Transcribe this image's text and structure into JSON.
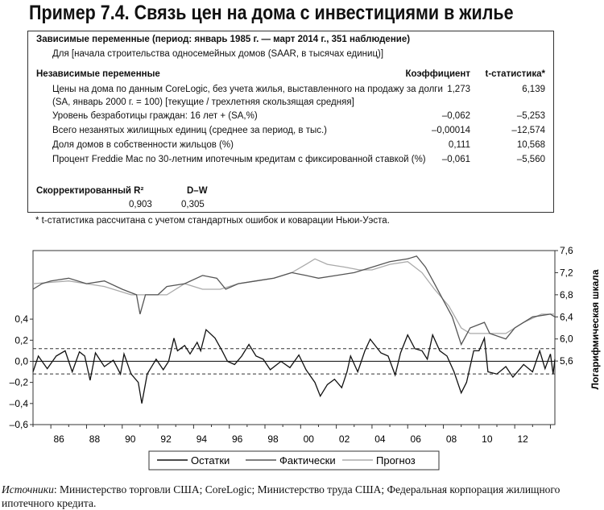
{
  "title": "Пример 7.4. Связь цен на дома с инвестициями в жилье",
  "table": {
    "dep_header": "Зависимые переменные (период: январь 1985 г. — март 2014 г., 351 наблюдение)",
    "dep_var": "Для [начала строительства односемейных домов (SAAR, в тысячах единиц)]",
    "indep_header": "Независимые переменные",
    "col_coef": "Коэффициент",
    "col_t": "t-статистика*",
    "rows": [
      {
        "label": "Цены на дома по данным CoreLogic, без учета жилья, выставленного на продажу за долги",
        "coef": "1,273",
        "t": "6,139"
      },
      {
        "label": "(SA, январь 2000 г. = 100) [текущие / трехлетняя скользящая средняя]",
        "coef": "",
        "t": ""
      },
      {
        "label": "Уровень безработицы граждан: 16 лет + (SA,%)",
        "coef": "–0,062",
        "t": "–5,253"
      },
      {
        "label": "Всего незанятых жилищных единиц (среднее за период, в тыс.)",
        "coef": "–0,00014",
        "t": "–12,574"
      },
      {
        "label": "Доля домов в собственности жильцов (%)",
        "coef": "0,111",
        "t": "10,568"
      },
      {
        "label": "Процент Freddie Mac по 30-летним ипотечным кредитам с фиксированной ставкой (%)",
        "coef": "–0,061",
        "t": "–5,560"
      }
    ],
    "r2_label": "Скорректированный R²",
    "r2_value": "0,903",
    "dw_label": "D–W",
    "dw_value": "0,305"
  },
  "footnote": "* t-статистика рассчитана с учетом стандартных ошибок и коварации Ньюи-Уэста.",
  "sources_label": "Источники",
  "sources_text": ": Министерство торговли США; CoreLogic; Министерство труда США; Федеральная корпорация жилищного ипотечного кредита.",
  "chart_data": {
    "type": "line",
    "x_ticks": [
      "86",
      "88",
      "90",
      "92",
      "94",
      "96",
      "98",
      "00",
      "02",
      "04",
      "06",
      "08",
      "10",
      "12"
    ],
    "xlim": [
      1985,
      2014.25
    ],
    "left_axis": {
      "ticks": [
        "0,4",
        "0,2",
        "0,0",
        "–0,2",
        "–0,4",
        "–0,6"
      ],
      "tick_values": [
        0.4,
        0.2,
        0,
        -0.2,
        -0.4,
        -0.6
      ],
      "ylim": [
        -0.6,
        1.05
      ]
    },
    "right_axis": {
      "label": "Логарифмическая шкала",
      "ticks": [
        "7,6",
        "7,2",
        "6,8",
        "6,4",
        "6,0",
        "5,6"
      ],
      "tick_values": [
        7.6,
        7.2,
        6.8,
        6.4,
        6.0,
        5.6
      ],
      "ylim": [
        4.45,
        7.6
      ]
    },
    "reference_lines": {
      "zero": 0,
      "dashed": [
        0.12,
        -0.12
      ]
    },
    "legend_placement": "bottom",
    "series": [
      {
        "name": "Остатки",
        "axis": "left",
        "color": "#111111",
        "points": [
          [
            1985,
            -0.1
          ],
          [
            1985.3,
            0.05
          ],
          [
            1985.8,
            -0.07
          ],
          [
            1986.3,
            0.05
          ],
          [
            1986.8,
            0.1
          ],
          [
            1987.2,
            -0.1
          ],
          [
            1987.6,
            0.09
          ],
          [
            1987.9,
            0.05
          ],
          [
            1988.2,
            -0.18
          ],
          [
            1988.5,
            0.08
          ],
          [
            1989,
            -0.05
          ],
          [
            1989.5,
            0.01
          ],
          [
            1989.9,
            -0.12
          ],
          [
            1990.1,
            0.07
          ],
          [
            1990.5,
            -0.12
          ],
          [
            1990.9,
            -0.2
          ],
          [
            1991.1,
            -0.4
          ],
          [
            1991.4,
            -0.12
          ],
          [
            1991.9,
            0.02
          ],
          [
            1992.3,
            -0.08
          ],
          [
            1992.6,
            0
          ],
          [
            1992.9,
            0.22
          ],
          [
            1993.1,
            0.1
          ],
          [
            1993.5,
            0.15
          ],
          [
            1993.8,
            0.07
          ],
          [
            1994.2,
            0.18
          ],
          [
            1994.4,
            0.1
          ],
          [
            1994.7,
            0.3
          ],
          [
            1995.2,
            0.22
          ],
          [
            1995.6,
            0.1
          ],
          [
            1995.9,
            0
          ],
          [
            1996.3,
            -0.03
          ],
          [
            1996.7,
            0.05
          ],
          [
            1997.1,
            0.16
          ],
          [
            1997.5,
            0.05
          ],
          [
            1997.9,
            0.02
          ],
          [
            1998.3,
            -0.08
          ],
          [
            1998.9,
            0
          ],
          [
            1999.4,
            -0.06
          ],
          [
            1999.9,
            0.06
          ],
          [
            2000.3,
            -0.08
          ],
          [
            2000.8,
            -0.2
          ],
          [
            2001.1,
            -0.33
          ],
          [
            2001.5,
            -0.22
          ],
          [
            2001.9,
            -0.17
          ],
          [
            2002.3,
            -0.25
          ],
          [
            2002.6,
            -0.1
          ],
          [
            2002.8,
            0.05
          ],
          [
            2003.2,
            -0.1
          ],
          [
            2003.6,
            0.1
          ],
          [
            2003.9,
            0.21
          ],
          [
            2004.5,
            0.08
          ],
          [
            2004.9,
            0.05
          ],
          [
            2005.3,
            -0.13
          ],
          [
            2005.6,
            0.08
          ],
          [
            2006.0,
            0.25
          ],
          [
            2006.4,
            0.12
          ],
          [
            2006.8,
            0.1
          ],
          [
            2007.1,
            0.02
          ],
          [
            2007.4,
            0.25
          ],
          [
            2007.8,
            0.1
          ],
          [
            2008.2,
            0.05
          ],
          [
            2008.6,
            -0.1
          ],
          [
            2009.0,
            -0.3
          ],
          [
            2009.3,
            -0.2
          ],
          [
            2009.7,
            0.1
          ],
          [
            2010.0,
            0.1
          ],
          [
            2010.3,
            0.22
          ],
          [
            2010.5,
            -0.1
          ],
          [
            2011.0,
            -0.12
          ],
          [
            2011.5,
            -0.05
          ],
          [
            2011.9,
            -0.15
          ],
          [
            2012.5,
            -0.03
          ],
          [
            2013.0,
            -0.1
          ],
          [
            2013.4,
            0.1
          ],
          [
            2013.7,
            -0.07
          ],
          [
            2014.0,
            0.07
          ],
          [
            2014.15,
            -0.12
          ],
          [
            2014.25,
            0.02
          ]
        ]
      },
      {
        "name": "Фактически",
        "axis": "right",
        "color": "#555555",
        "points": [
          [
            1985,
            6.9
          ],
          [
            1985.5,
            7.0
          ],
          [
            1986,
            7.05
          ],
          [
            1987,
            7.1
          ],
          [
            1988,
            7.0
          ],
          [
            1989,
            7.05
          ],
          [
            1990,
            6.9
          ],
          [
            1990.8,
            6.8
          ],
          [
            1991.0,
            6.45
          ],
          [
            1991.3,
            6.8
          ],
          [
            1992,
            6.8
          ],
          [
            1992.5,
            6.95
          ],
          [
            1993.5,
            7.0
          ],
          [
            1994.5,
            7.15
          ],
          [
            1995.3,
            7.1
          ],
          [
            1995.8,
            6.9
          ],
          [
            1996.5,
            7.0
          ],
          [
            1997.5,
            7.05
          ],
          [
            1998.5,
            7.1
          ],
          [
            1999.5,
            7.2
          ],
          [
            2000.3,
            7.15
          ],
          [
            2001,
            7.1
          ],
          [
            2002,
            7.15
          ],
          [
            2003,
            7.2
          ],
          [
            2004,
            7.3
          ],
          [
            2005,
            7.4
          ],
          [
            2006,
            7.45
          ],
          [
            2006.5,
            7.5
          ],
          [
            2007,
            7.3
          ],
          [
            2007.5,
            7.0
          ],
          [
            2008,
            6.7
          ],
          [
            2008.5,
            6.4
          ],
          [
            2009.0,
            5.9
          ],
          [
            2009.5,
            6.2
          ],
          [
            2010.3,
            6.3
          ],
          [
            2010.6,
            6.1
          ],
          [
            2011.5,
            6.0
          ],
          [
            2012,
            6.2
          ],
          [
            2013,
            6.4
          ],
          [
            2014,
            6.45
          ],
          [
            2014.25,
            6.4
          ]
        ]
      },
      {
        "name": "Прогноз",
        "axis": "right",
        "color": "#aaaaaa",
        "points": [
          [
            1985,
            7.0
          ],
          [
            1987,
            7.05
          ],
          [
            1989,
            6.95
          ],
          [
            1990.5,
            6.8
          ],
          [
            1991.5,
            6.8
          ],
          [
            1992.5,
            6.8
          ],
          [
            1993.5,
            7.0
          ],
          [
            1994.5,
            6.9
          ],
          [
            1995.5,
            6.9
          ],
          [
            1996.5,
            7.0
          ],
          [
            1997.5,
            7.05
          ],
          [
            1998.5,
            7.1
          ],
          [
            1999.5,
            7.2
          ],
          [
            2000.3,
            7.35
          ],
          [
            2000.8,
            7.45
          ],
          [
            2001.5,
            7.35
          ],
          [
            2002.5,
            7.3
          ],
          [
            2003.3,
            7.25
          ],
          [
            2004,
            7.25
          ],
          [
            2005,
            7.35
          ],
          [
            2006,
            7.4
          ],
          [
            2006.8,
            7.2
          ],
          [
            2007.5,
            6.9
          ],
          [
            2008.3,
            6.6
          ],
          [
            2009,
            6.2
          ],
          [
            2009.5,
            6.1
          ],
          [
            2011,
            6.1
          ],
          [
            2011.5,
            6.1
          ],
          [
            2012.5,
            6.3
          ],
          [
            2013.5,
            6.45
          ],
          [
            2014.25,
            6.45
          ]
        ]
      }
    ]
  }
}
